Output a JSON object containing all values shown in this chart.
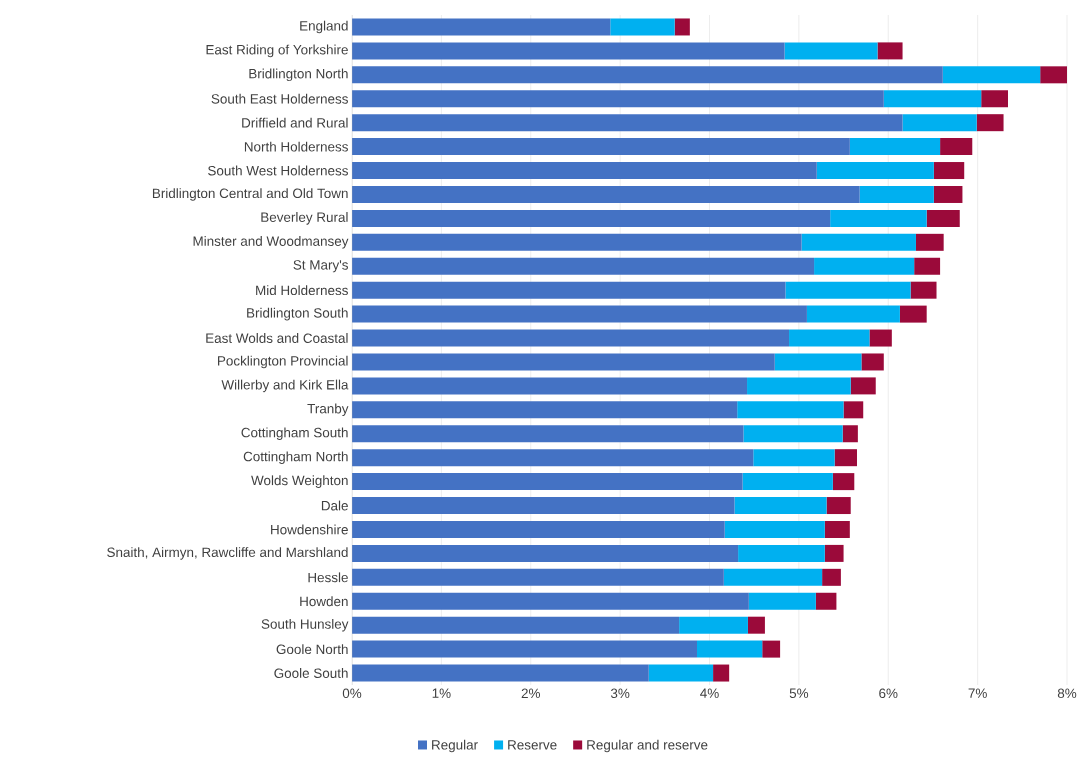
{
  "chart_data": {
    "type": "bar",
    "orientation": "horizontal",
    "stacked": true,
    "grid": "x",
    "legend": "bottom",
    "categories": [
      "England",
      "East Riding of Yorkshire",
      "Bridlington North",
      "South East Holderness",
      "Driffield and Rural",
      "North Holderness",
      "South West Holderness",
      "Bridlington Central and Old Town",
      "Beverley Rural",
      "Minster and Woodmansey",
      "St Mary's",
      "Mid Holderness",
      "Bridlington South",
      "East Wolds and Coastal",
      "Pocklington Provincial",
      "Willerby and Kirk Ella",
      "Tranby",
      "Cottingham South",
      "Cottingham North",
      "Wolds Weighton",
      "Dale",
      "Howdenshire",
      "Snaith, Airmyn, Rawcliffe and Marshland",
      "Hessle",
      "Howden",
      "South Hunsley",
      "Goole North",
      "Goole South"
    ],
    "series": [
      {
        "name": "Regular",
        "color": "#4472c4",
        "values": [
          2.89,
          4.84,
          6.61,
          5.95,
          6.16,
          5.57,
          5.2,
          5.68,
          5.35,
          5.03,
          5.17,
          4.85,
          5.09,
          4.89,
          4.73,
          4.42,
          4.31,
          4.38,
          4.49,
          4.37,
          4.28,
          4.17,
          4.32,
          4.16,
          4.44,
          3.66,
          3.86,
          3.32
        ]
      },
      {
        "name": "Reserve",
        "color": "#00b0f0",
        "values": [
          0.72,
          1.04,
          1.09,
          1.09,
          0.83,
          1.01,
          1.31,
          0.83,
          1.08,
          1.28,
          1.12,
          1.4,
          1.04,
          0.9,
          0.97,
          1.16,
          1.19,
          1.11,
          0.91,
          1.01,
          1.03,
          1.12,
          0.97,
          1.1,
          0.75,
          0.77,
          0.73,
          0.72
        ]
      },
      {
        "name": "Regular and reserve",
        "color": "#9b0a3a",
        "values": [
          0.17,
          0.28,
          0.3,
          0.3,
          0.3,
          0.36,
          0.34,
          0.32,
          0.37,
          0.31,
          0.29,
          0.29,
          0.3,
          0.25,
          0.25,
          0.28,
          0.22,
          0.17,
          0.25,
          0.24,
          0.27,
          0.28,
          0.21,
          0.21,
          0.23,
          0.19,
          0.2,
          0.18
        ]
      }
    ],
    "xlim": [
      0,
      8
    ],
    "xticks": [
      {
        "value": 0,
        "label": "0%"
      },
      {
        "value": 1,
        "label": "1%"
      },
      {
        "value": 2,
        "label": "2%"
      },
      {
        "value": 3,
        "label": "3%"
      },
      {
        "value": 4,
        "label": "4%"
      },
      {
        "value": 5,
        "label": "5%"
      },
      {
        "value": 6,
        "label": "6%"
      },
      {
        "value": 7,
        "label": "7%"
      },
      {
        "value": 8,
        "label": "8%"
      }
    ]
  }
}
